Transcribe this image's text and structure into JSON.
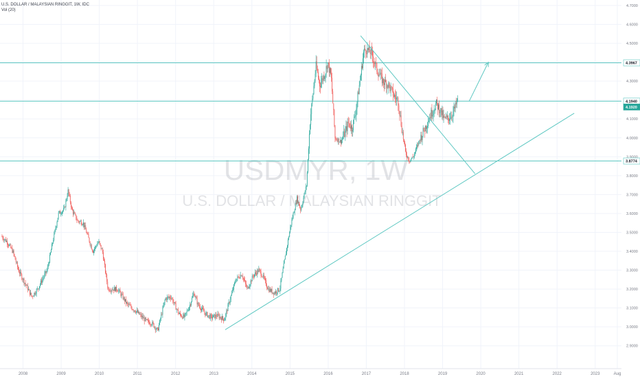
{
  "chart_data": {
    "type": "candlestick",
    "symbol": "U.S. DOLLAR / MALAYSIAN RINGGIT, 1W, IDC",
    "volume_label": "Vol (20)",
    "watermark_main": "USDMYR, 1W",
    "watermark_sub": "U.S. DOLLAR / MALAYSIAN RINGGIT",
    "y_axis": {
      "position": "right",
      "min": 2.9,
      "max": 4.7,
      "ticks": [
        "2.9000",
        "3.0000",
        "3.1000",
        "3.2000",
        "3.3000",
        "3.4000",
        "3.5000",
        "3.6000",
        "3.7000",
        "3.8000",
        "3.9000",
        "4.0000",
        "4.1000",
        "4.2000",
        "4.3000",
        "4.4000",
        "4.5000",
        "4.6000",
        "4.7000"
      ]
    },
    "x_axis": {
      "ticks": [
        {
          "label": "2008",
          "x": 2008.0
        },
        {
          "label": "2009",
          "x": 2009.0
        },
        {
          "label": "2010",
          "x": 2010.0
        },
        {
          "label": "2011",
          "x": 2011.0
        },
        {
          "label": "2012",
          "x": 2012.0
        },
        {
          "label": "2013",
          "x": 2013.0
        },
        {
          "label": "2014",
          "x": 2014.0
        },
        {
          "label": "2015",
          "x": 2015.0
        },
        {
          "label": "2016",
          "x": 2016.0
        },
        {
          "label": "2017",
          "x": 2017.0
        },
        {
          "label": "2018",
          "x": 2018.0
        },
        {
          "label": "2019",
          "x": 2019.0
        },
        {
          "label": "2020",
          "x": 2020.0
        },
        {
          "label": "2021",
          "x": 2021.0
        },
        {
          "label": "2022",
          "x": 2022.0
        },
        {
          "label": "2023",
          "x": 2023.0
        },
        {
          "label": "Aug",
          "x": 2023.58
        }
      ]
    },
    "price_path": [
      [
        2007.45,
        3.48
      ],
      [
        2007.6,
        3.45
      ],
      [
        2007.75,
        3.4
      ],
      [
        2007.9,
        3.3
      ],
      [
        2008.1,
        3.22
      ],
      [
        2008.25,
        3.16
      ],
      [
        2008.4,
        3.2
      ],
      [
        2008.5,
        3.24
      ],
      [
        2008.65,
        3.3
      ],
      [
        2008.8,
        3.45
      ],
      [
        2008.95,
        3.6
      ],
      [
        2009.1,
        3.62
      ],
      [
        2009.2,
        3.72
      ],
      [
        2009.3,
        3.62
      ],
      [
        2009.45,
        3.56
      ],
      [
        2009.6,
        3.55
      ],
      [
        2009.75,
        3.46
      ],
      [
        2009.85,
        3.4
      ],
      [
        2010.0,
        3.45
      ],
      [
        2010.1,
        3.4
      ],
      [
        2010.25,
        3.2
      ],
      [
        2010.5,
        3.2
      ],
      [
        2010.75,
        3.12
      ],
      [
        2011.0,
        3.08
      ],
      [
        2011.25,
        3.03
      ],
      [
        2011.4,
        3.02
      ],
      [
        2011.55,
        2.98
      ],
      [
        2011.75,
        3.15
      ],
      [
        2011.9,
        3.16
      ],
      [
        2012.1,
        3.07
      ],
      [
        2012.25,
        3.05
      ],
      [
        2012.4,
        3.12
      ],
      [
        2012.5,
        3.18
      ],
      [
        2012.6,
        3.12
      ],
      [
        2012.8,
        3.07
      ],
      [
        2012.95,
        3.05
      ],
      [
        2013.1,
        3.06
      ],
      [
        2013.3,
        3.04
      ],
      [
        2013.45,
        3.15
      ],
      [
        2013.6,
        3.25
      ],
      [
        2013.75,
        3.28
      ],
      [
        2013.9,
        3.2
      ],
      [
        2014.05,
        3.27
      ],
      [
        2014.2,
        3.3
      ],
      [
        2014.3,
        3.27
      ],
      [
        2014.45,
        3.2
      ],
      [
        2014.6,
        3.18
      ],
      [
        2014.75,
        3.2
      ],
      [
        2014.9,
        3.38
      ],
      [
        2015.05,
        3.55
      ],
      [
        2015.2,
        3.68
      ],
      [
        2015.3,
        3.62
      ],
      [
        2015.45,
        3.75
      ],
      [
        2015.55,
        4.1
      ],
      [
        2015.7,
        4.38
      ],
      [
        2015.8,
        4.28
      ],
      [
        2015.95,
        4.35
      ],
      [
        2016.0,
        4.4
      ],
      [
        2016.1,
        4.32
      ],
      [
        2016.2,
        4.0
      ],
      [
        2016.35,
        3.98
      ],
      [
        2016.45,
        4.02
      ],
      [
        2016.55,
        4.08
      ],
      [
        2016.65,
        4.05
      ],
      [
        2016.75,
        4.15
      ],
      [
        2016.85,
        4.3
      ],
      [
        2016.95,
        4.45
      ],
      [
        2017.0,
        4.47
      ],
      [
        2017.15,
        4.45
      ],
      [
        2017.3,
        4.36
      ],
      [
        2017.45,
        4.3
      ],
      [
        2017.6,
        4.28
      ],
      [
        2017.75,
        4.22
      ],
      [
        2017.85,
        4.2
      ],
      [
        2017.95,
        4.05
      ],
      [
        2018.05,
        3.92
      ],
      [
        2018.15,
        3.88
      ],
      [
        2018.25,
        3.9
      ],
      [
        2018.4,
        3.98
      ],
      [
        2018.55,
        4.05
      ],
      [
        2018.7,
        4.12
      ],
      [
        2018.85,
        4.18
      ],
      [
        2018.95,
        4.15
      ],
      [
        2019.05,
        4.1
      ],
      [
        2019.15,
        4.1
      ],
      [
        2019.25,
        4.12
      ],
      [
        2019.35,
        4.16
      ],
      [
        2019.4,
        4.194
      ]
    ],
    "annotations": {
      "horizontal_lines": [
        {
          "label": "4.3967",
          "value": 4.3967
        },
        {
          "label": "4.1940",
          "value": 4.194
        },
        {
          "label": "3.8774",
          "value": 3.8774
        }
      ],
      "current_price_label": "4.1920",
      "current_price": 4.192,
      "trendlines": [
        {
          "name": "rising-support",
          "from": [
            2013.3,
            2.985
          ],
          "to": [
            2022.45,
            4.13
          ]
        },
        {
          "name": "falling-resistance",
          "from": [
            2016.85,
            4.54
          ],
          "to": [
            2019.85,
            3.81
          ]
        }
      ],
      "projection_arrow": {
        "from": [
          2019.7,
          4.195
        ],
        "to": [
          2020.2,
          4.4
        ]
      }
    },
    "colors": {
      "up": "#26a69a",
      "down": "#ef5350",
      "line": "#5ec8c2",
      "axis_text": "#787b86",
      "label_bg": "#26a69a",
      "watermark": "rgba(150,155,165,0.28)"
    }
  }
}
